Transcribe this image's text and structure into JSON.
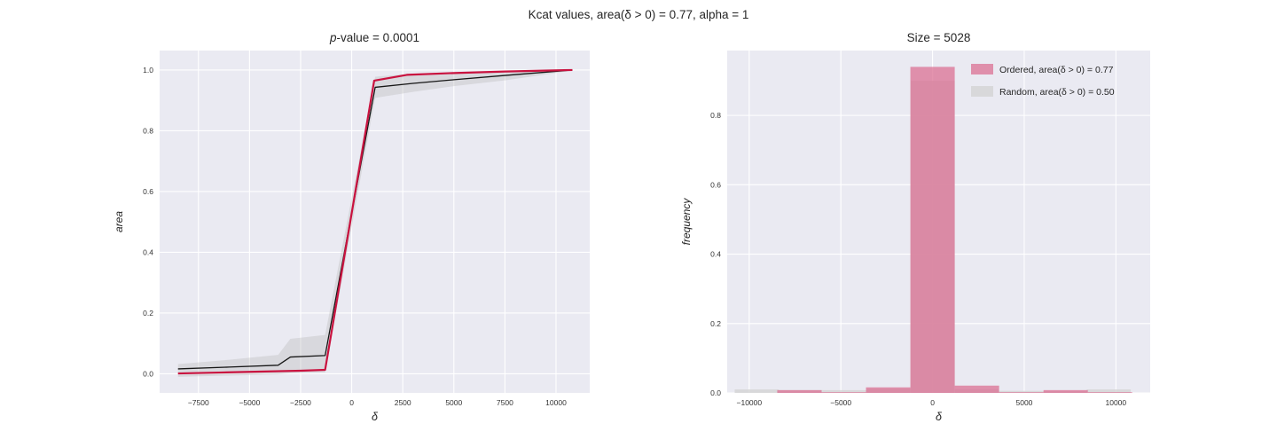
{
  "figure": {
    "suptitle": "Kcat values, area(δ > 0) = 0.77, alpha = 1",
    "colors": {
      "axes_bg": "#eaeaf2",
      "grid": "#ffffff",
      "text": "#262626",
      "tick_text": "#333333",
      "ordered_line": "#c9123f",
      "random_line": "#161616",
      "band": "#b8b8b8",
      "hist_ordered": "#db7093",
      "hist_random": "#d3d3d3"
    }
  },
  "chart_data": [
    {
      "id": "pvalue-line-chart",
      "type": "line",
      "title": "p-value = 0.0001",
      "title_italic_chars": 1,
      "xlabel": "δ",
      "ylabel": "area",
      "xlim": [
        -9400,
        11650
      ],
      "ylim": [
        -0.063,
        1.064
      ],
      "xticks": [
        -7500,
        -5000,
        -2500,
        0,
        2500,
        5000,
        7500,
        10000
      ],
      "yticks": [
        0,
        0.2,
        0.4,
        0.6,
        0.8,
        1
      ],
      "grid": true,
      "band": {
        "name": "random-confidence-band",
        "x": [
          -8500,
          -6000,
          -3600,
          -3000,
          -1300,
          1150,
          3000,
          5000,
          7500,
          10800
        ],
        "upper": [
          0.032,
          0.046,
          0.062,
          0.115,
          0.128,
          0.978,
          0.988,
          0.992,
          0.996,
          1.002
        ],
        "lower": [
          -0.01,
          -0.006,
          -0.002,
          0.002,
          0.004,
          0.908,
          0.928,
          0.947,
          0.966,
          0.998
        ]
      },
      "series": [
        {
          "name": "random-mean",
          "color_key": "random_line",
          "width": 1.3,
          "x": [
            -8500,
            -6000,
            -3600,
            -3000,
            -1300,
            1150,
            3000,
            5000,
            7500,
            10800
          ],
          "y": [
            0.016,
            0.022,
            0.028,
            0.055,
            0.06,
            0.943,
            0.956,
            0.968,
            0.982,
            1.0
          ]
        },
        {
          "name": "ordered",
          "color_key": "ordered_line",
          "width": 2.2,
          "x": [
            -8500,
            -6500,
            -4500,
            -2500,
            -1300,
            1100,
            2700,
            5000,
            7500,
            10800
          ],
          "y": [
            0.001,
            0.004,
            0.007,
            0.01,
            0.013,
            0.965,
            0.984,
            0.99,
            0.995,
            1.0
          ]
        }
      ]
    },
    {
      "id": "size-histogram-chart",
      "type": "histogram",
      "title": "Size = 5028",
      "title_italic_chars": 0,
      "xlabel": "δ",
      "ylabel": "frequency",
      "xlim": [
        -11200,
        11870
      ],
      "ylim": [
        0,
        0.987
      ],
      "xticks": [
        -10000,
        -5000,
        0,
        5000,
        10000
      ],
      "yticks": [
        0,
        0.2,
        0.4,
        0.6,
        0.8
      ],
      "grid": true,
      "series": [
        {
          "name": "random",
          "color_key": "hist_random",
          "opacity": 0.8,
          "bins": [
            [
              -10790,
              -8390,
              0.01
            ],
            [
              -8390,
              -5990,
              0.008
            ],
            [
              -5990,
              -3590,
              0.008
            ],
            [
              -3590,
              -1190,
              0.012
            ],
            [
              -1190,
              1210,
              0.9
            ],
            [
              1210,
              3610,
              0.01
            ],
            [
              3610,
              6010,
              0.006
            ],
            [
              6010,
              8410,
              0.005
            ],
            [
              8410,
              10810,
              0.01
            ]
          ]
        },
        {
          "name": "ordered",
          "color_key": "hist_ordered",
          "opacity": 0.75,
          "bins": [
            [
              -8470,
              -6050,
              0.008
            ],
            [
              -6050,
              -3630,
              0.002
            ],
            [
              -3630,
              -1210,
              0.016
            ],
            [
              -1210,
              1210,
              0.94
            ],
            [
              1210,
              3630,
              0.021
            ],
            [
              3630,
              6050,
              0.002
            ],
            [
              6050,
              8470,
              0.008
            ],
            [
              8470,
              10890,
              0.002
            ]
          ]
        }
      ],
      "legend": {
        "entries": [
          {
            "label": "Ordered, area(δ > 0) = 0.77",
            "color_key": "hist_ordered",
            "opacity": 0.75
          },
          {
            "label": "Random, area(δ > 0) = 0.50",
            "color_key": "hist_random",
            "opacity": 0.8
          }
        ]
      }
    }
  ]
}
